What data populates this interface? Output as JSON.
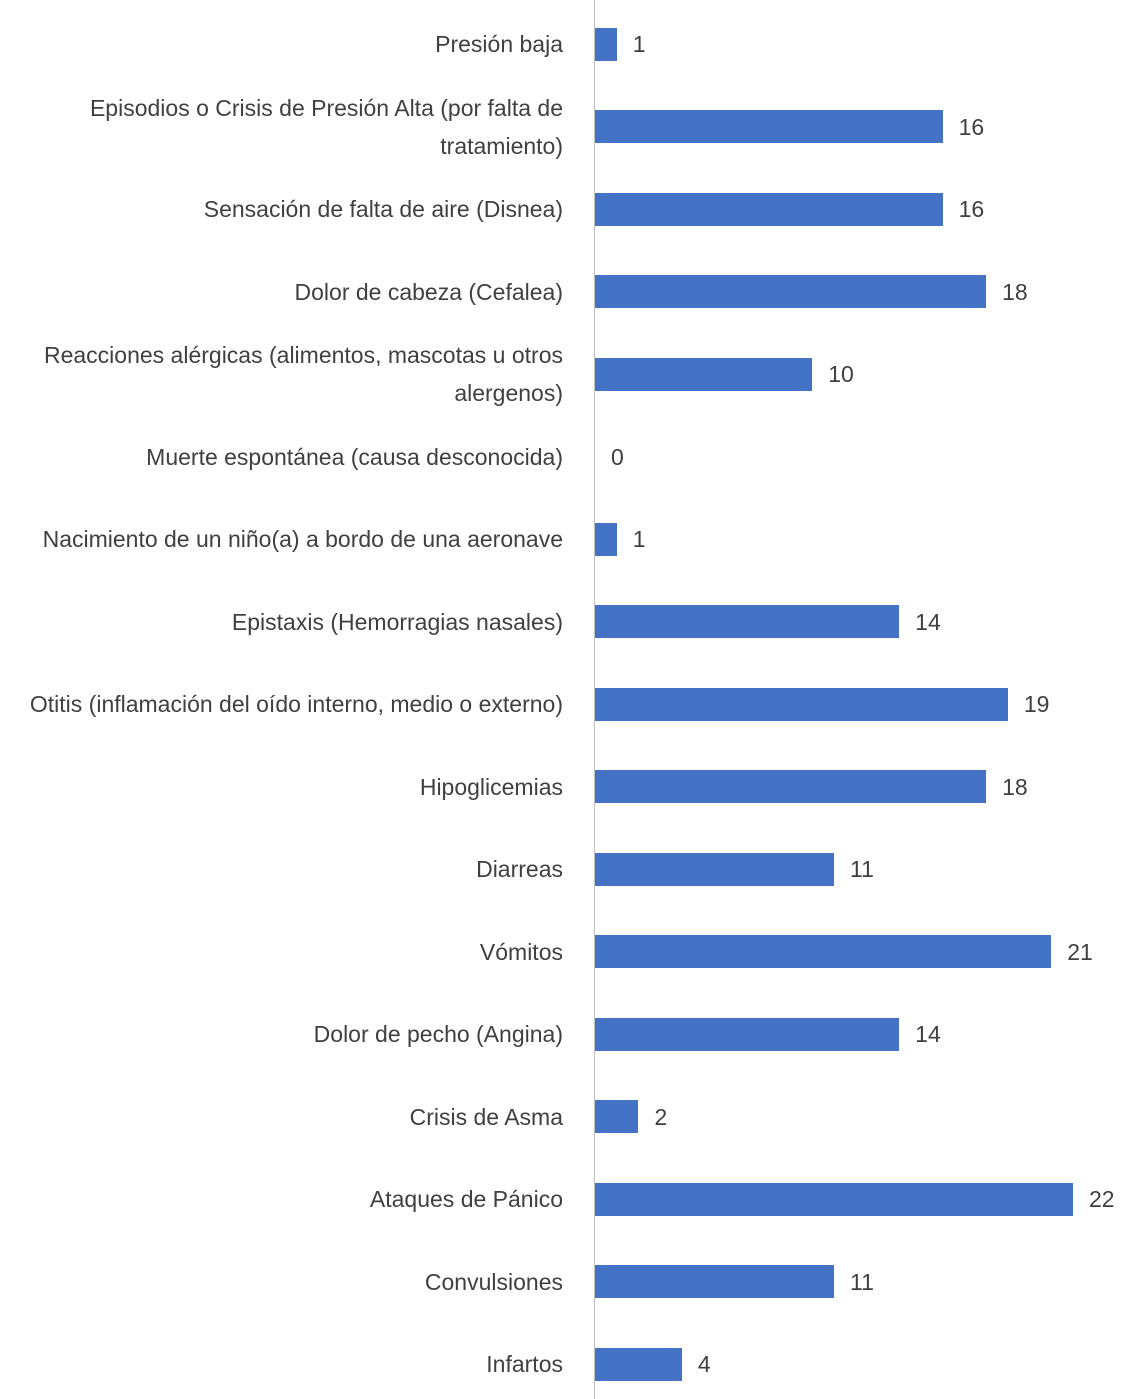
{
  "chart_data": {
    "type": "barh",
    "categories": [
      "Presión baja",
      "Episodios o Crisis de Presión Alta (por falta de tratamiento)",
      "Sensación de falta de aire (Disnea)",
      "Dolor de cabeza (Cefalea)",
      "Reacciones alérgicas (alimentos, mascotas u otros alergenos)",
      "Muerte espontánea (causa desconocida)",
      "Nacimiento de un niño(a) a bordo de una aeronave",
      "Epistaxis (Hemorragias nasales)",
      "Otitis (inflamación del oído interno, medio o externo)",
      "Hipoglicemias",
      "Diarreas",
      "Vómitos",
      "Dolor de pecho (Angina)",
      "Crisis de Asma",
      "Ataques de Pánico",
      "Convulsiones",
      "Infartos"
    ],
    "values": [
      1,
      16,
      16,
      18,
      10,
      0,
      1,
      14,
      19,
      18,
      11,
      21,
      14,
      2,
      22,
      11,
      4
    ],
    "color": "#4472c4"
  }
}
